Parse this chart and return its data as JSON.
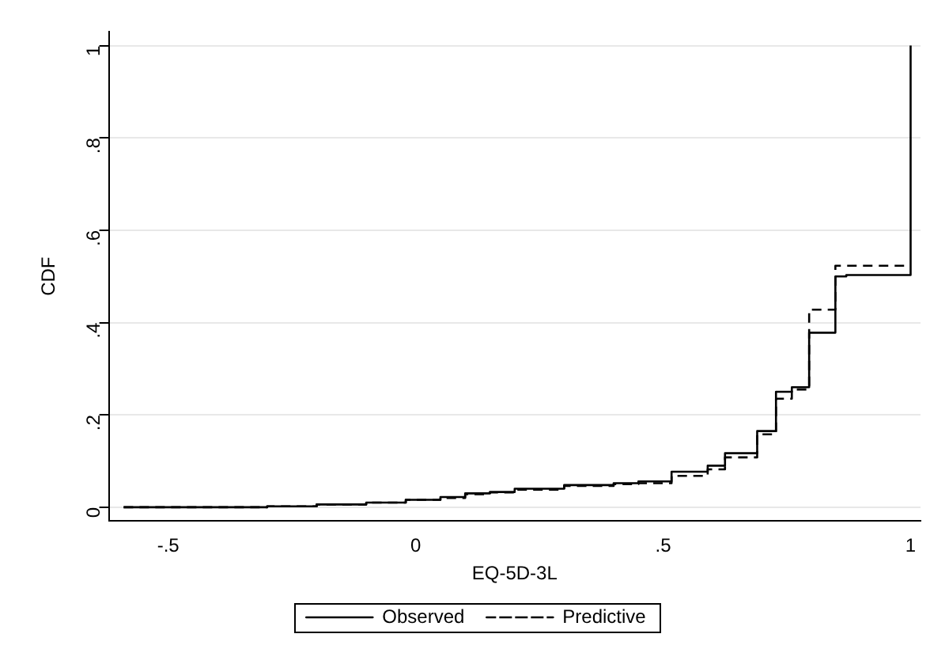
{
  "chart_data": {
    "type": "step",
    "xlabel": "EQ-5D-3L",
    "ylabel": "CDF",
    "xlim": [
      -0.62,
      1.02
    ],
    "ylim": [
      -0.03,
      1.03
    ],
    "xticks": [
      {
        "value": -0.5,
        "label": "-.5"
      },
      0,
      {
        "value": 0.5,
        "label": ".5"
      },
      1
    ],
    "yticks": [
      0,
      {
        "value": 0.2,
        "label": ".2"
      },
      {
        "value": 0.4,
        "label": ".4"
      },
      {
        "value": 0.6,
        "label": ".6"
      },
      {
        "value": 0.8,
        "label": ".8"
      },
      1
    ],
    "grid": "y",
    "legend": "bottom",
    "marker": "none",
    "series": [
      {
        "name": "Observed",
        "color": "#000000",
        "line_style": "solid",
        "x": [
          -0.59,
          -0.3,
          -0.2,
          -0.1,
          -0.02,
          0.05,
          0.1,
          0.15,
          0.2,
          0.3,
          0.4,
          0.45,
          0.517,
          0.59,
          0.625,
          0.69,
          0.728,
          0.76,
          0.795,
          0.848,
          0.87,
          1.0,
          1.0
        ],
        "values": [
          0.0,
          0.002,
          0.006,
          0.01,
          0.016,
          0.022,
          0.03,
          0.033,
          0.04,
          0.048,
          0.052,
          0.056,
          0.077,
          0.09,
          0.117,
          0.165,
          0.25,
          0.26,
          0.378,
          0.5,
          0.503,
          1.0,
          1.0
        ]
      },
      {
        "name": "Predictive",
        "color": "#000000",
        "line_style": "dashed",
        "x": [
          -0.59,
          -0.3,
          -0.2,
          -0.1,
          -0.02,
          0.05,
          0.1,
          0.15,
          0.2,
          0.3,
          0.4,
          0.45,
          0.517,
          0.59,
          0.625,
          0.69,
          0.728,
          0.76,
          0.795,
          0.848,
          1.0
        ],
        "values": [
          0.0,
          0.002,
          0.006,
          0.01,
          0.016,
          0.02,
          0.028,
          0.032,
          0.038,
          0.046,
          0.05,
          0.052,
          0.068,
          0.082,
          0.108,
          0.158,
          0.235,
          0.255,
          0.428,
          0.523,
          0.523
        ]
      }
    ]
  }
}
